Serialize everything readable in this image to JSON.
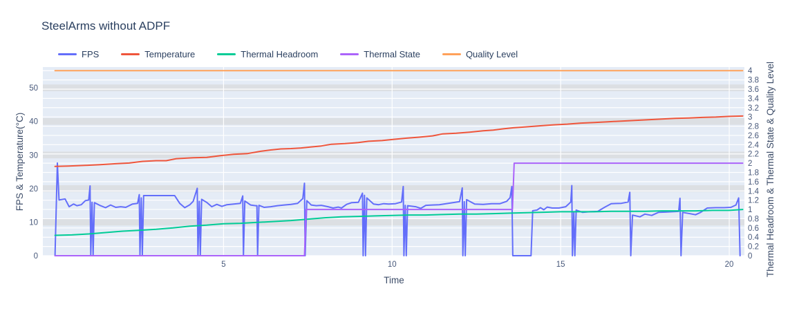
{
  "title": "SteelArms without ADPF",
  "colors": {
    "plot_bg": "#e5ecf6",
    "grid": "#ffffff",
    "band": "#dcdfe3",
    "title_text": "#2a3f5f",
    "tick_text": "#47587a",
    "fps": "#636EFA",
    "temperature": "#EF553B",
    "thermal_headroom": "#00CC96",
    "thermal_state": "#AB63FA",
    "quality_level": "#FFA15A"
  },
  "legend": {
    "items": [
      {
        "label": "FPS",
        "color": "#636EFA"
      },
      {
        "label": "Temperature",
        "color": "#EF553B"
      },
      {
        "label": "Thermal Headroom",
        "color": "#00CC96"
      },
      {
        "label": "Thermal State",
        "color": "#AB63FA"
      },
      {
        "label": "Quality Level",
        "color": "#FFA15A"
      }
    ]
  },
  "chart_data": {
    "type": "line",
    "title": "SteelArms without ADPF",
    "xlabel": "Time",
    "ylabel_left": "FPS & Temperature(°C)",
    "ylabel_right": "Thermal Headroom & Thermal State & Quality Level",
    "x_range": [
      -0.36,
      20.45
    ],
    "y_left_range": [
      0,
      56.2
    ],
    "y_right_range": [
      0,
      4.078
    ],
    "x_ticks": [
      5,
      10,
      15,
      20
    ],
    "y_left_ticks": [
      0,
      10,
      20,
      30,
      40,
      50
    ],
    "y_right_ticks": [
      0,
      0.2,
      0.4,
      0.6,
      0.8,
      1,
      1.2,
      1.4,
      1.6,
      1.8,
      2,
      2.2,
      2.4,
      2.6,
      2.8,
      3,
      3.2,
      3.4,
      3.6,
      3.8,
      4
    ],
    "grid": true,
    "legend_position": "top",
    "series": [
      {
        "name": "FPS",
        "axis": "left",
        "color": "#636EFA",
        "points": [
          [
            0,
            0
          ],
          [
            0.07,
            27.6
          ],
          [
            0.12,
            16.6
          ],
          [
            0.3,
            16.9
          ],
          [
            0.42,
            14.6
          ],
          [
            0.55,
            15.4
          ],
          [
            0.65,
            14.9
          ],
          [
            0.78,
            15.2
          ],
          [
            0.9,
            16.4
          ],
          [
            1.0,
            16.6
          ],
          [
            1.04,
            20.8
          ],
          [
            1.06,
            0
          ],
          [
            1.1,
            15.9
          ],
          [
            1.13,
            0
          ],
          [
            1.17,
            15.8
          ],
          [
            1.35,
            14.9
          ],
          [
            1.5,
            14.3
          ],
          [
            1.65,
            15.1
          ],
          [
            1.8,
            14.4
          ],
          [
            1.95,
            14.6
          ],
          [
            2.1,
            14.4
          ],
          [
            2.3,
            15.4
          ],
          [
            2.45,
            15.6
          ],
          [
            2.5,
            18.2
          ],
          [
            2.52,
            0
          ],
          [
            2.56,
            17.2
          ],
          [
            2.59,
            0
          ],
          [
            2.63,
            17.9
          ],
          [
            3.1,
            17.9
          ],
          [
            3.55,
            17.9
          ],
          [
            3.7,
            15.6
          ],
          [
            3.85,
            14.3
          ],
          [
            4.0,
            15.2
          ],
          [
            4.1,
            16.2
          ],
          [
            4.22,
            20.1
          ],
          [
            4.24,
            0
          ],
          [
            4.28,
            16.2
          ],
          [
            4.31,
            0
          ],
          [
            4.35,
            16.8
          ],
          [
            4.5,
            15.9
          ],
          [
            4.65,
            14.6
          ],
          [
            4.8,
            15.3
          ],
          [
            4.95,
            14.7
          ],
          [
            5.1,
            15.2
          ],
          [
            5.3,
            15.4
          ],
          [
            5.5,
            15.6
          ],
          [
            5.57,
            17.8
          ],
          [
            5.59,
            0
          ],
          [
            5.63,
            16.3
          ],
          [
            5.8,
            15.1
          ],
          [
            5.95,
            14.9
          ],
          [
            5.99,
            14.9
          ],
          [
            6.01,
            0
          ],
          [
            6.05,
            15.0
          ],
          [
            6.2,
            14.4
          ],
          [
            6.4,
            14.6
          ],
          [
            6.6,
            14.9
          ],
          [
            6.8,
            15.1
          ],
          [
            7.0,
            15.3
          ],
          [
            7.2,
            15.6
          ],
          [
            7.35,
            17.0
          ],
          [
            7.4,
            21.6
          ],
          [
            7.42,
            0
          ],
          [
            7.47,
            16.4
          ],
          [
            7.6,
            15.1
          ],
          [
            7.75,
            14.9
          ],
          [
            7.9,
            15.0
          ],
          [
            8.1,
            14.6
          ],
          [
            8.25,
            14.2
          ],
          [
            8.4,
            14.5
          ],
          [
            8.5,
            14.2
          ],
          [
            8.65,
            15.3
          ],
          [
            8.8,
            15.8
          ],
          [
            9.0,
            15.9
          ],
          [
            9.12,
            18.6
          ],
          [
            9.14,
            0
          ],
          [
            9.18,
            18.0
          ],
          [
            9.21,
            0
          ],
          [
            9.25,
            17.2
          ],
          [
            9.45,
            15.4
          ],
          [
            9.6,
            15.2
          ],
          [
            9.75,
            15.5
          ],
          [
            9.9,
            15.4
          ],
          [
            10.1,
            15.5
          ],
          [
            10.28,
            16.0
          ],
          [
            10.33,
            20.6
          ],
          [
            10.35,
            0
          ],
          [
            10.39,
            15.0
          ],
          [
            10.42,
            0
          ],
          [
            10.46,
            14.9
          ],
          [
            10.7,
            14.6
          ],
          [
            10.85,
            14.1
          ],
          [
            11.0,
            15.0
          ],
          [
            11.2,
            15.1
          ],
          [
            11.4,
            15.2
          ],
          [
            11.6,
            15.5
          ],
          [
            11.8,
            15.8
          ],
          [
            12.0,
            16.1
          ],
          [
            12.08,
            20.2
          ],
          [
            12.1,
            0
          ],
          [
            12.14,
            16.1
          ],
          [
            12.17,
            0
          ],
          [
            12.21,
            16.7
          ],
          [
            12.45,
            15.4
          ],
          [
            12.7,
            15.3
          ],
          [
            12.95,
            15.5
          ],
          [
            13.2,
            15.5
          ],
          [
            13.4,
            16.2
          ],
          [
            13.5,
            17.3
          ],
          [
            13.55,
            20.6
          ],
          [
            13.58,
            0
          ],
          [
            14.12,
            0
          ],
          [
            14.17,
            13.4
          ],
          [
            14.3,
            13.6
          ],
          [
            14.4,
            14.3
          ],
          [
            14.5,
            13.7
          ],
          [
            14.6,
            14.5
          ],
          [
            14.75,
            14.2
          ],
          [
            14.95,
            14.2
          ],
          [
            15.15,
            14.6
          ],
          [
            15.3,
            16.0
          ],
          [
            15.33,
            20.9
          ],
          [
            15.35,
            0
          ],
          [
            15.39,
            13.0
          ],
          [
            15.42,
            0
          ],
          [
            15.46,
            13.6
          ],
          [
            15.65,
            12.9
          ],
          [
            15.85,
            13.1
          ],
          [
            16.1,
            13.2
          ],
          [
            16.3,
            14.4
          ],
          [
            16.5,
            15.5
          ],
          [
            16.8,
            15.6
          ],
          [
            17.0,
            16.0
          ],
          [
            17.05,
            18.9
          ],
          [
            17.08,
            0
          ],
          [
            17.13,
            12.1
          ],
          [
            17.35,
            11.6
          ],
          [
            17.5,
            12.4
          ],
          [
            17.7,
            12.0
          ],
          [
            17.9,
            12.9
          ],
          [
            18.1,
            13.0
          ],
          [
            18.3,
            13.1
          ],
          [
            18.5,
            13.2
          ],
          [
            18.54,
            17.1
          ],
          [
            18.57,
            0
          ],
          [
            18.62,
            12.9
          ],
          [
            18.85,
            12.5
          ],
          [
            19.0,
            12.2
          ],
          [
            19.15,
            12.9
          ],
          [
            19.35,
            14.2
          ],
          [
            19.6,
            14.3
          ],
          [
            19.85,
            14.3
          ],
          [
            20.05,
            14.4
          ],
          [
            20.2,
            15.1
          ],
          [
            20.28,
            17.2
          ],
          [
            20.32,
            0
          ]
        ]
      },
      {
        "name": "Temperature",
        "axis": "left",
        "color": "#EF553B",
        "points": [
          [
            0,
            26.6
          ],
          [
            0.4,
            26.7
          ],
          [
            0.9,
            26.9
          ],
          [
            1.3,
            27.1
          ],
          [
            1.8,
            27.4
          ],
          [
            2.2,
            27.6
          ],
          [
            2.6,
            28.1
          ],
          [
            3.0,
            28.3
          ],
          [
            3.3,
            28.3
          ],
          [
            3.6,
            28.9
          ],
          [
            4.1,
            29.2
          ],
          [
            4.5,
            29.3
          ],
          [
            4.9,
            29.8
          ],
          [
            5.3,
            30.2
          ],
          [
            5.7,
            30.4
          ],
          [
            6.1,
            31.1
          ],
          [
            6.4,
            31.5
          ],
          [
            6.7,
            31.8
          ],
          [
            7.0,
            31.9
          ],
          [
            7.3,
            32.1
          ],
          [
            7.6,
            32.4
          ],
          [
            7.9,
            32.7
          ],
          [
            8.2,
            33.2
          ],
          [
            8.6,
            33.4
          ],
          [
            9.0,
            33.7
          ],
          [
            9.3,
            34.1
          ],
          [
            9.7,
            34.3
          ],
          [
            10.0,
            34.6
          ],
          [
            10.4,
            35.0
          ],
          [
            10.8,
            35.3
          ],
          [
            11.2,
            35.7
          ],
          [
            11.5,
            36.3
          ],
          [
            11.9,
            36.5
          ],
          [
            12.3,
            36.8
          ],
          [
            12.7,
            37.2
          ],
          [
            13.0,
            37.4
          ],
          [
            13.3,
            37.8
          ],
          [
            13.6,
            38.1
          ],
          [
            14.0,
            38.4
          ],
          [
            14.4,
            38.7
          ],
          [
            14.8,
            39.0
          ],
          [
            15.2,
            39.2
          ],
          [
            15.6,
            39.5
          ],
          [
            16.0,
            39.7
          ],
          [
            16.4,
            39.9
          ],
          [
            16.8,
            40.1
          ],
          [
            17.2,
            40.3
          ],
          [
            17.6,
            40.5
          ],
          [
            18.0,
            40.7
          ],
          [
            18.4,
            40.9
          ],
          [
            18.8,
            41.0
          ],
          [
            19.2,
            41.2
          ],
          [
            19.6,
            41.3
          ],
          [
            20.0,
            41.5
          ],
          [
            20.4,
            41.6
          ]
        ],
        "step": true
      },
      {
        "name": "Thermal Headroom",
        "axis": "right",
        "color": "#00CC96",
        "points": [
          [
            0,
            0.44
          ],
          [
            0.5,
            0.45
          ],
          [
            1,
            0.47
          ],
          [
            1.5,
            0.5
          ],
          [
            2,
            0.53
          ],
          [
            2.5,
            0.55
          ],
          [
            3,
            0.57
          ],
          [
            3.5,
            0.6
          ],
          [
            4,
            0.64
          ],
          [
            4.5,
            0.66
          ],
          [
            5,
            0.69
          ],
          [
            5.5,
            0.7
          ],
          [
            6,
            0.72
          ],
          [
            6.5,
            0.74
          ],
          [
            7,
            0.76
          ],
          [
            7.5,
            0.79
          ],
          [
            8,
            0.82
          ],
          [
            8.5,
            0.84
          ],
          [
            9,
            0.85
          ],
          [
            9.5,
            0.86
          ],
          [
            10,
            0.87
          ],
          [
            10.5,
            0.88
          ],
          [
            11,
            0.88
          ],
          [
            11.5,
            0.89
          ],
          [
            12,
            0.9
          ],
          [
            12.5,
            0.9
          ],
          [
            13,
            0.91
          ],
          [
            13.5,
            0.92
          ],
          [
            14,
            0.93
          ],
          [
            14.5,
            0.94
          ],
          [
            15,
            0.95
          ],
          [
            15.5,
            0.95
          ],
          [
            16,
            0.95
          ],
          [
            16.5,
            0.96
          ],
          [
            17,
            0.96
          ],
          [
            17.5,
            0.96
          ],
          [
            18,
            0.97
          ],
          [
            18.5,
            0.97
          ],
          [
            19,
            0.97
          ],
          [
            19.5,
            0.98
          ],
          [
            20,
            0.98
          ],
          [
            20.4,
            1.0
          ]
        ]
      },
      {
        "name": "Thermal State",
        "axis": "right",
        "color": "#AB63FA",
        "points": [
          [
            0,
            0
          ],
          [
            7.4,
            0
          ],
          [
            7.45,
            1
          ],
          [
            13.57,
            1
          ],
          [
            13.62,
            2
          ],
          [
            20.4,
            2
          ]
        ]
      },
      {
        "name": "Quality Level",
        "axis": "right",
        "color": "#FFA15A",
        "points": [
          [
            0,
            4
          ],
          [
            20.4,
            4
          ]
        ]
      }
    ]
  }
}
